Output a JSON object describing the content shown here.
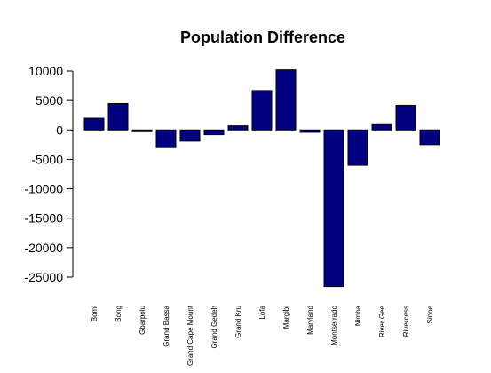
{
  "chart_data": {
    "type": "bar",
    "title": "Population Difference",
    "xlabel": "",
    "ylabel": "",
    "categories": [
      "Bomi",
      "Bong",
      "Gbarpolu",
      "Grand Bassa",
      "Grand Cape Mount",
      "Grand Gedeh",
      "Grand Kru",
      "Lofa",
      "Margibi",
      "Maryland",
      "Montserrado",
      "Nimba",
      "River Gee",
      "Rivercess",
      "Sinoe"
    ],
    "values": [
      2000,
      4500,
      -300,
      -3000,
      -1900,
      -800,
      700,
      6700,
      10200,
      -400,
      -26600,
      -6000,
      900,
      4200,
      -2500
    ],
    "ylim": [
      -27000,
      10500
    ],
    "yticks": [
      10000,
      5000,
      0,
      -5000,
      -10000,
      -15000,
      -20000,
      -25000
    ],
    "grid": false,
    "bar_color": "#000080"
  }
}
